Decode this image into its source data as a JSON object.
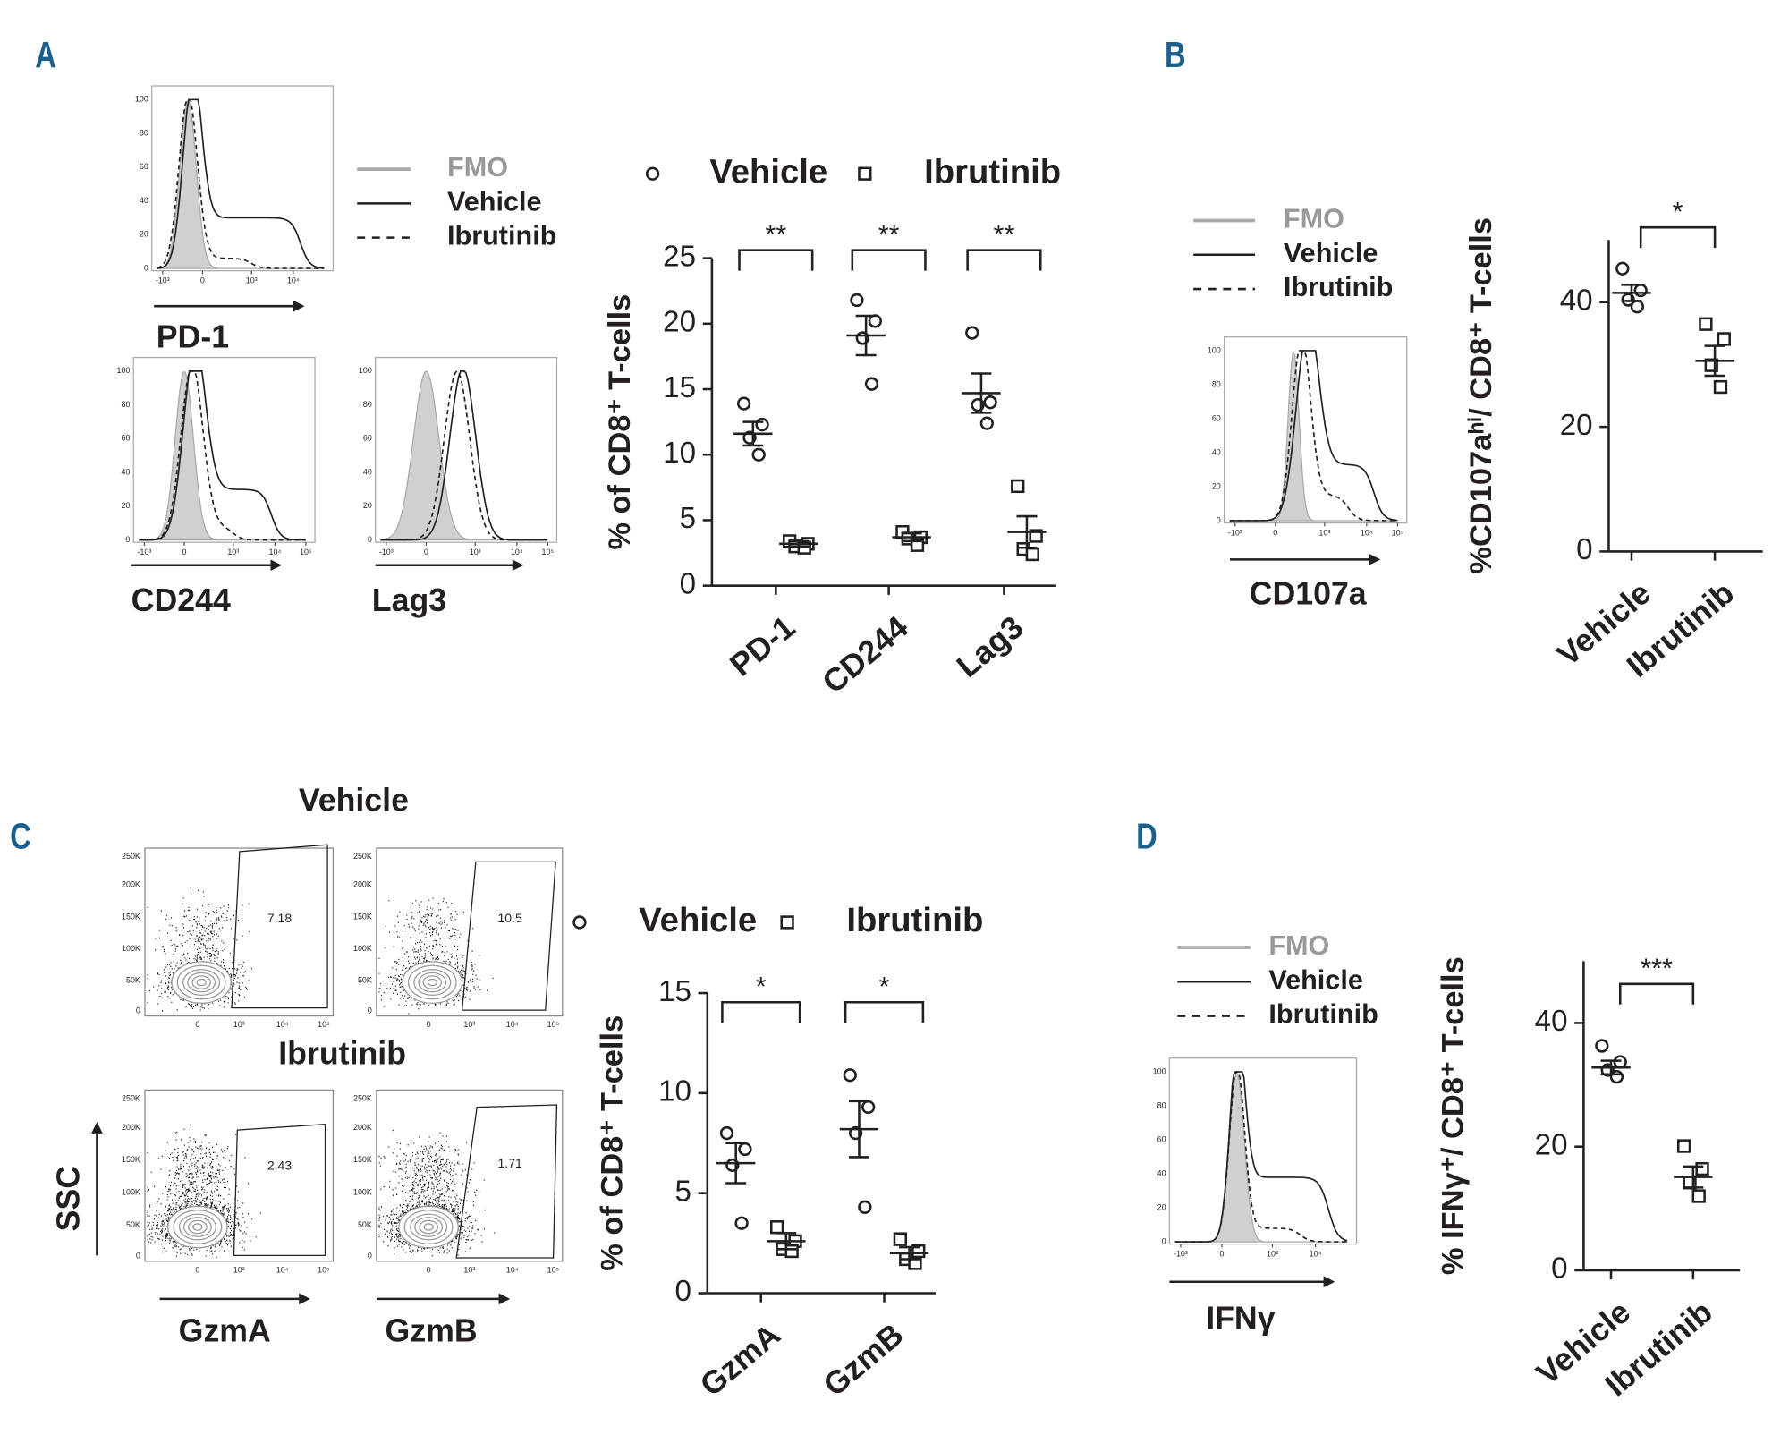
{
  "figure": {
    "panel_labels": [
      "A",
      "B",
      "C",
      "D"
    ],
    "histogram_legend": [
      "FMO",
      "Vehicle",
      "Ibrutinib"
    ],
    "histograms": [
      {
        "label": "PD-1",
        "xticks": [
          "-10³",
          "0",
          "10³",
          "10⁴"
        ]
      },
      {
        "label": "CD244",
        "xticks": [
          "-10³",
          "0",
          "10³",
          "10⁴",
          "10⁵"
        ]
      },
      {
        "label": "Lag3",
        "xticks": [
          "-10³",
          "0",
          "10³",
          "10⁴",
          "10⁵"
        ]
      },
      {
        "label": "CD107a",
        "xticks": [
          "-10³",
          "0",
          "10³",
          "10⁴",
          "10⁵"
        ]
      },
      {
        "label": "IFNγ",
        "xticks": [
          "-10³",
          "0",
          "10³",
          "10⁴"
        ]
      }
    ],
    "histogram_yticks": [
      0,
      20,
      40,
      60,
      80,
      100
    ],
    "contour_titles": [
      "Vehicle",
      "Ibrutinib"
    ],
    "contour_plots": [
      {
        "gate_value": 7.18
      },
      {
        "gate_value": 10.5
      },
      {
        "gate_value": 2.43
      },
      {
        "gate_value": 1.71
      }
    ],
    "contour_yticks": [
      "0",
      "50K",
      "100K",
      "150K",
      "200K",
      "250K"
    ],
    "contour_xticks": [
      "0",
      "10³",
      "10⁴",
      "10⁵"
    ],
    "contour_y_label": "SSC",
    "contour_x_labels": [
      "GzmA",
      "GzmB"
    ]
  },
  "chart_data": [
    {
      "type": "dot",
      "ylabel": "% of CD8⁺ T-cells",
      "categories": [
        "PD-1",
        "CD244",
        "Lag3"
      ],
      "ylim": [
        0,
        25
      ],
      "yticks": [
        0,
        5,
        10,
        15,
        20,
        25
      ],
      "legend": true,
      "series": [
        {
          "name": "Vehicle",
          "marker": "circle",
          "values": [
            [
              13.9,
              12.3,
              11.3,
              10.0
            ],
            [
              21.8,
              20.2,
              18.9,
              15.4
            ],
            [
              19.3,
              14.0,
              13.8,
              12.4
            ]
          ],
          "mean": [
            11.6,
            19.1,
            14.7
          ],
          "sem": [
            0.9,
            1.5,
            1.5
          ]
        },
        {
          "name": "Ibrutinib",
          "marker": "square",
          "values": [
            [
              3.4,
              3.2,
              3.0,
              2.9
            ],
            [
              4.1,
              3.7,
              3.6,
              3.1
            ],
            [
              7.6,
              3.8,
              2.8,
              2.4
            ]
          ],
          "mean": [
            3.2,
            3.7,
            4.1
          ],
          "sem": [
            0.2,
            0.3,
            1.2
          ]
        }
      ],
      "significance": [
        "**",
        "**",
        "**"
      ]
    },
    {
      "type": "dot",
      "ylabel": "%CD107aʰⁱ/ CD8⁺ T-cells",
      "categories": [
        "Vehicle",
        "Ibrutinib"
      ],
      "ylim": [
        0,
        50
      ],
      "yticks": [
        0,
        20,
        40
      ],
      "legend": false,
      "markers": [
        "circle",
        "square"
      ],
      "values": [
        [
          45.4,
          41.9,
          40.4,
          39.3
        ],
        [
          36.5,
          34.1,
          29.9,
          26.4
        ]
      ],
      "mean": [
        41.5,
        30.6
      ],
      "sem": [
        1.3,
        2.4
      ],
      "significance": [
        "*"
      ]
    },
    {
      "type": "dot",
      "ylabel": "% of CD8⁺ T-cells",
      "categories": [
        "GzmA",
        "GzmB"
      ],
      "ylim": [
        0,
        15
      ],
      "yticks": [
        0,
        5,
        10,
        15
      ],
      "legend": true,
      "series": [
        {
          "name": "Vehicle",
          "marker": "circle",
          "values": [
            [
              8.0,
              7.2,
              6.4,
              3.5
            ],
            [
              10.9,
              9.3,
              8.0,
              4.3
            ]
          ],
          "mean": [
            6.5,
            8.2
          ],
          "sem": [
            1.0,
            1.4
          ]
        },
        {
          "name": "Ibrutinib",
          "marker": "square",
          "values": [
            [
              3.3,
              2.6,
              2.2,
              2.1
            ],
            [
              2.7,
              2.1,
              1.7,
              1.5
            ]
          ],
          "mean": [
            2.6,
            2.0
          ],
          "sem": [
            0.4,
            0.3
          ]
        }
      ],
      "significance": [
        "*",
        "*"
      ]
    },
    {
      "type": "dot",
      "ylabel": "% IFNγ⁺/ CD8⁺ T-cells",
      "categories": [
        "Vehicle",
        "Ibrutinib"
      ],
      "ylim": [
        0,
        50
      ],
      "yticks": [
        0,
        20,
        40
      ],
      "legend": false,
      "markers": [
        "circle",
        "square"
      ],
      "values": [
        [
          36.3,
          33.7,
          32.4,
          31.3
        ],
        [
          20.1,
          16.4,
          14.2,
          12.0
        ]
      ],
      "mean": [
        32.8,
        15.1
      ],
      "sem": [
        1.1,
        1.7
      ],
      "significance": [
        "***"
      ]
    }
  ]
}
